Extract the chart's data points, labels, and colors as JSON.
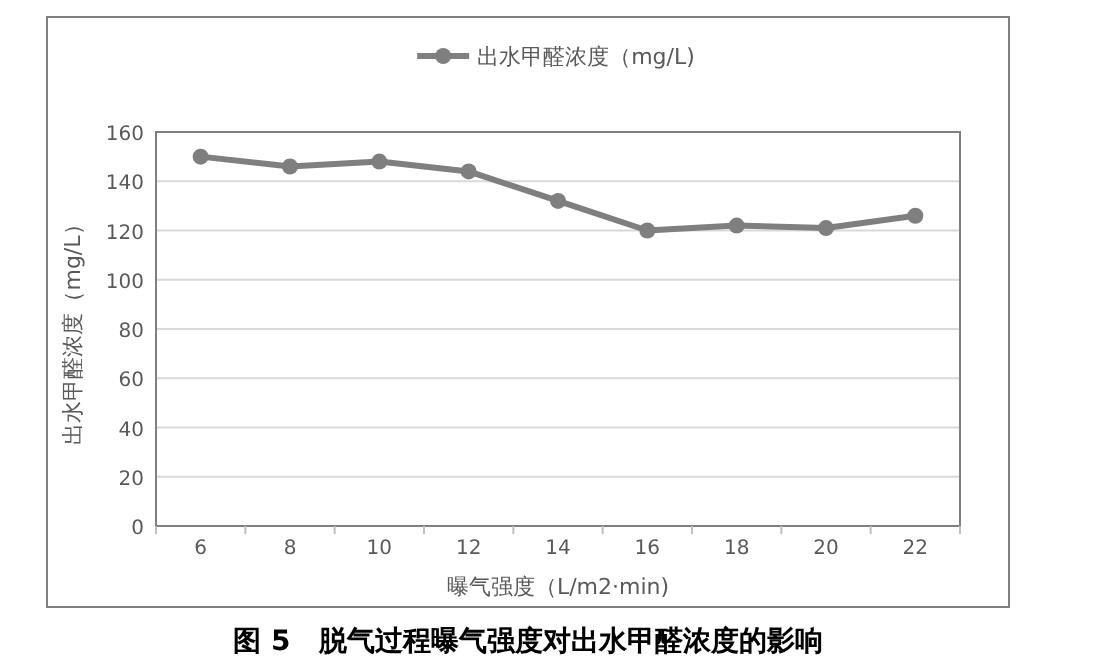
{
  "chart_data": {
    "type": "line",
    "title": "图 5　脱气过程曝气强度对出水甲醛浓度的影响",
    "xlabel": "曝气强度（L/m2·min)",
    "ylabel": "出水甲醛浓度（mg/L）",
    "categories": [
      "6",
      "8",
      "10",
      "12",
      "14",
      "16",
      "18",
      "20",
      "22"
    ],
    "series": [
      {
        "name": "出水甲醛浓度（mg/L)",
        "color": "#7f7f7f",
        "values": [
          150,
          146,
          148,
          144,
          132,
          120,
          122,
          121,
          126
        ]
      }
    ],
    "ylim": [
      0,
      160
    ],
    "yticks": [
      0,
      20,
      40,
      60,
      80,
      100,
      120,
      140,
      160
    ],
    "grid": "y",
    "legend": "top",
    "marker": "circle",
    "line_style": "solid"
  }
}
